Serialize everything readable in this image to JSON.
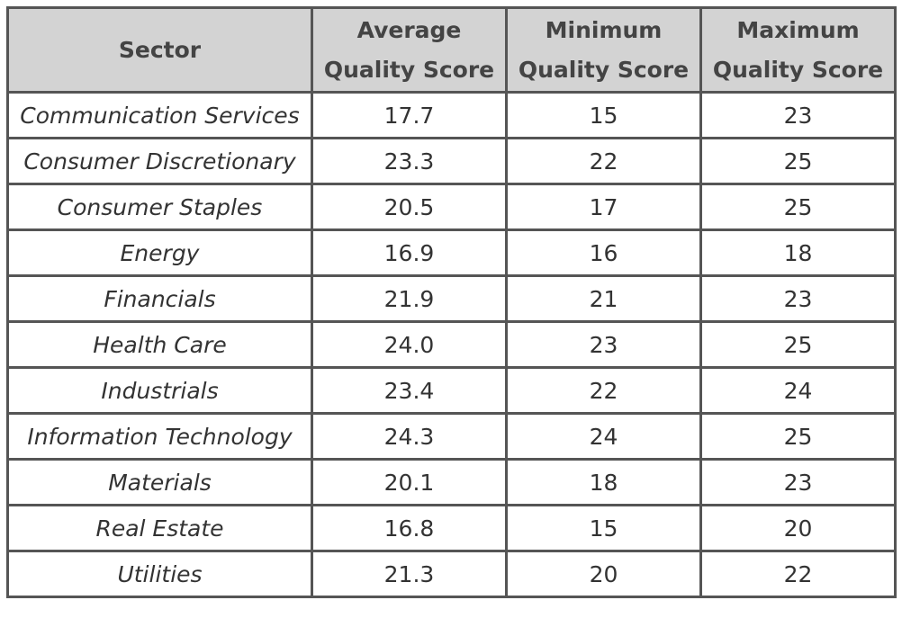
{
  "chart_data": {
    "type": "table",
    "columns": [
      "Sector",
      "Average Quality Score",
      "Minimum Quality Score",
      "Maximum Quality Score"
    ],
    "header_lines": [
      [
        "Sector"
      ],
      [
        "Average",
        "Quality Score"
      ],
      [
        "Minimum",
        "Quality Score"
      ],
      [
        "Maximum",
        "Quality Score"
      ]
    ],
    "rows": [
      [
        "Communication Services",
        "17.7",
        "15",
        "23"
      ],
      [
        "Consumer Discretionary",
        "23.3",
        "22",
        "25"
      ],
      [
        "Consumer Staples",
        "20.5",
        "17",
        "25"
      ],
      [
        "Energy",
        "16.9",
        "16",
        "18"
      ],
      [
        "Financials",
        "21.9",
        "21",
        "23"
      ],
      [
        "Health Care",
        "24.0",
        "23",
        "25"
      ],
      [
        "Industrials",
        "23.4",
        "22",
        "24"
      ],
      [
        "Information Technology",
        "24.3",
        "24",
        "25"
      ],
      [
        "Materials",
        "20.1",
        "18",
        "23"
      ],
      [
        "Real Estate",
        "16.8",
        "15",
        "20"
      ],
      [
        "Utilities",
        "21.3",
        "20",
        "22"
      ]
    ],
    "colors": {
      "header_background": "#d3d3d3",
      "border": "#555555",
      "text": "#333333"
    }
  }
}
